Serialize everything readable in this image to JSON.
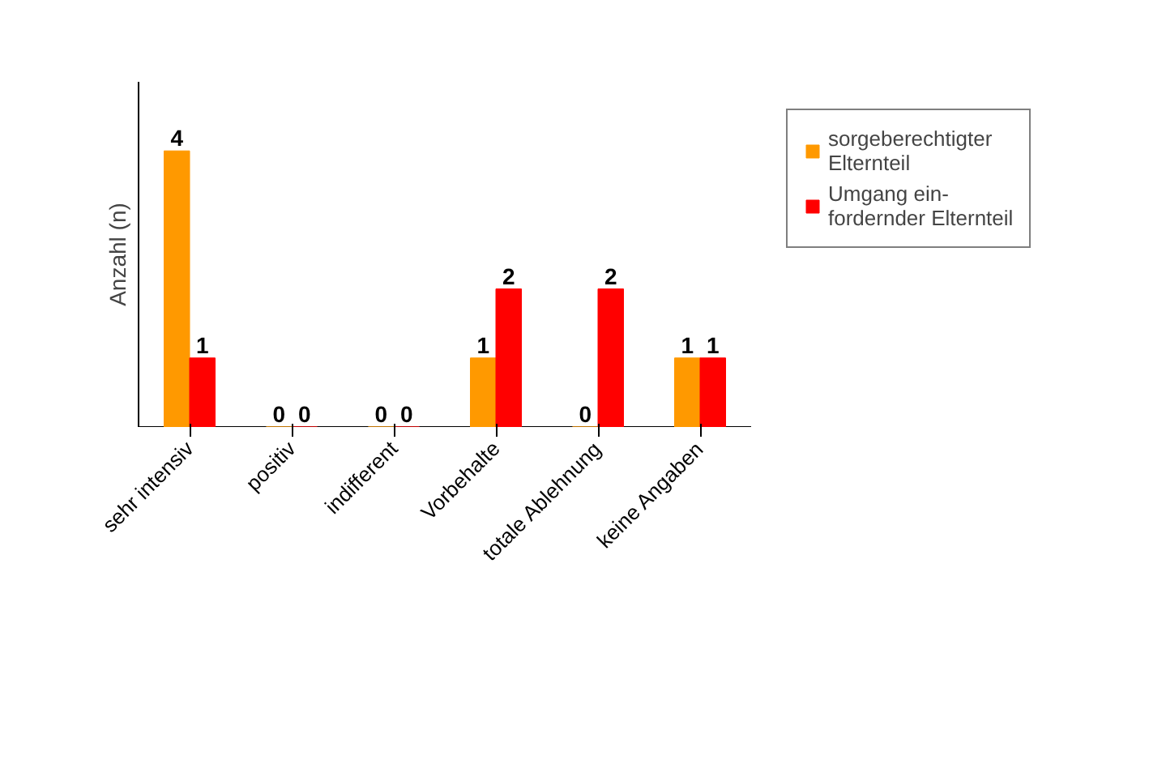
{
  "chart_data": {
    "type": "bar",
    "ylabel": "Anzahl (n)",
    "categories": [
      "sehr intensiv",
      "positiv",
      "indifferent",
      "Vorbehalte",
      "totale Ablehnung",
      "keine Angaben"
    ],
    "series": [
      {
        "name": "sorgeberechtigter\nElternteil",
        "color": "#ff9900",
        "values": [
          4,
          0,
          0,
          1,
          0,
          1
        ]
      },
      {
        "name": "Umgang ein-\nfordernder Elternteil",
        "color": "#ff0000",
        "values": [
          1,
          0,
          0,
          2,
          2,
          1
        ]
      }
    ],
    "ylim": [
      0,
      5
    ],
    "data_labels": true,
    "grid": false,
    "legend": "right",
    "tick_labels": "x"
  }
}
